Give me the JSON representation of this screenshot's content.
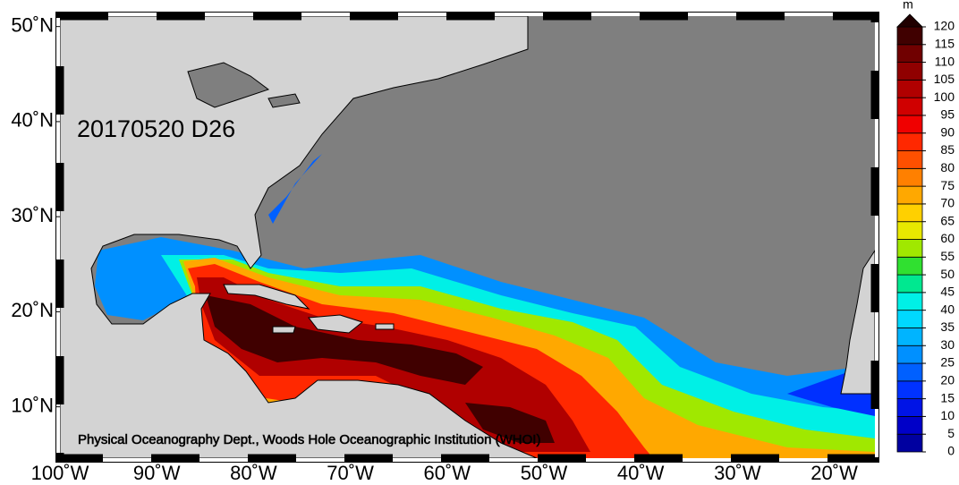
{
  "map": {
    "date_label": "20170520 D26",
    "credit": "Physical Oceanography Dept., Woods Hole Oceanographic Institution (WHOI)",
    "lon_range": [
      -100,
      -15.8
    ],
    "lat_range": [
      4.6,
      51.1
    ],
    "lat_ticks": [
      {
        "value": 50,
        "label": "50˚N"
      },
      {
        "value": 40,
        "label": "40˚N"
      },
      {
        "value": 30,
        "label": "30˚N"
      },
      {
        "value": 20,
        "label": "20˚N"
      },
      {
        "value": 10,
        "label": "10˚N"
      }
    ],
    "lon_ticks": [
      {
        "value": -100,
        "label": "100˚W"
      },
      {
        "value": -90,
        "label": "90˚W"
      },
      {
        "value": -80,
        "label": "80˚W"
      },
      {
        "value": -70,
        "label": "70˚W"
      },
      {
        "value": -60,
        "label": "60˚W"
      },
      {
        "value": -50,
        "label": "50˚W"
      },
      {
        "value": -40,
        "label": "40˚W"
      },
      {
        "value": -30,
        "label": "30˚W"
      },
      {
        "value": -20,
        "label": "20˚W"
      }
    ]
  },
  "colorbar": {
    "unit": "m",
    "levels": [
      0,
      5,
      10,
      15,
      20,
      25,
      30,
      35,
      40,
      45,
      50,
      55,
      60,
      65,
      70,
      75,
      80,
      85,
      90,
      95,
      100,
      105,
      110,
      115,
      120
    ],
    "colors": [
      "#0000a0",
      "#0000c8",
      "#0014e6",
      "#0032ff",
      "#0060ff",
      "#0090ff",
      "#00b4ff",
      "#00d8ff",
      "#00f0e6",
      "#00e890",
      "#30e030",
      "#a0e800",
      "#e8e800",
      "#ffd000",
      "#ffa800",
      "#ff8000",
      "#ff5000",
      "#ff2800",
      "#f00000",
      "#d00000",
      "#b00000",
      "#900000",
      "#700000",
      "#400000"
    ],
    "over_color": "#200000"
  }
}
